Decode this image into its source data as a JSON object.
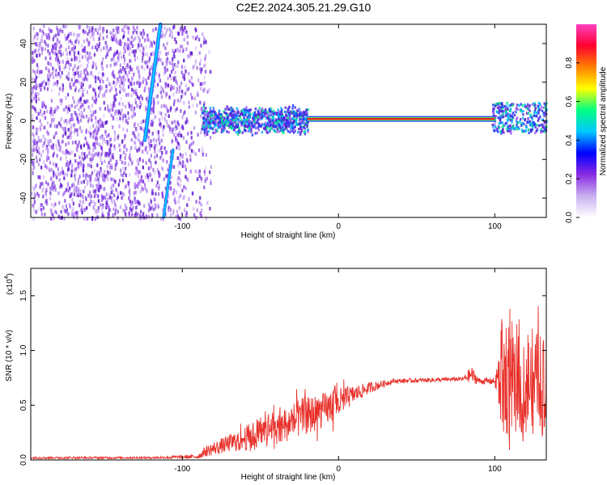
{
  "title": "C2E2.2024.305.21.29.G10",
  "colors": {
    "snr_line": "#e8302a",
    "carrier_core": "#e0152a",
    "satellite_streak": "#2a6bff",
    "noise_dots": "#7d3bd6"
  },
  "chart_data": [
    {
      "type": "heatmap",
      "name": "spectrogram",
      "xlabel": "Height of straight line (km)",
      "ylabel": "Frequency (Hz)",
      "xlim": [
        -197,
        133
      ],
      "ylim": [
        -50,
        50
      ],
      "x_ticks": [
        -100,
        0,
        100
      ],
      "x_tick_labels": [
        "-100",
        "0",
        "100"
      ],
      "y_ticks": [
        -40,
        -20,
        0,
        20,
        40
      ],
      "y_tick_labels": [
        "-40",
        "-20",
        "0",
        "20",
        "40"
      ],
      "colorbar": {
        "label": "Normalized spectral amplitude",
        "range": [
          0,
          1
        ],
        "ticks": [
          0.0,
          0.2,
          0.4,
          0.6,
          0.8
        ],
        "tick_labels": [
          "0.0",
          "0.2",
          "0.4",
          "0.6",
          "0.8"
        ],
        "colormap": [
          "#ffffff",
          "#c8b0f0",
          "#8a2be2",
          "#0000ff",
          "#00c8ff",
          "#00ff80",
          "#ffff00",
          "#ff8000",
          "#ff0030",
          "#ff40c0"
        ]
      },
      "features": {
        "noise_region_x": [
          -197,
          -88
        ],
        "transition_region_x": [
          -88,
          -20
        ],
        "carrier_line_x": [
          -20,
          100
        ],
        "carrier_line_freq": 1,
        "satellite_streak_a": [
          [
            -124,
            -10
          ],
          [
            -114,
            50
          ]
        ],
        "satellite_streak_b": [
          [
            -112,
            -50
          ],
          [
            -106,
            -15
          ]
        ]
      }
    },
    {
      "type": "line",
      "name": "snr",
      "xlabel": "Height of straight line (km)",
      "ylabel": "SNR (10 * v/v)",
      "y_scale_label": "(x10",
      "y_scale_exponent": "4",
      "xlim": [
        -197,
        133
      ],
      "ylim": [
        0,
        1.75
      ],
      "x_ticks": [
        -100,
        0,
        100
      ],
      "x_tick_labels": [
        "-100",
        "0",
        "100"
      ],
      "y_ticks": [
        0.0,
        0.5,
        1.0,
        1.5
      ],
      "y_tick_labels": [
        "0.0",
        "0.5",
        "1.0",
        "1.5"
      ],
      "series": [
        {
          "name": "SNR",
          "envelope_x": [
            -197,
            -120,
            -90,
            -85,
            -70,
            -55,
            -40,
            -25,
            -10,
            0,
            10,
            20,
            35,
            60,
            80,
            85,
            90,
            100,
            105,
            115,
            125,
            133
          ],
          "envelope_mid": [
            0.02,
            0.02,
            0.03,
            0.08,
            0.15,
            0.22,
            0.3,
            0.38,
            0.45,
            0.52,
            0.6,
            0.66,
            0.72,
            0.73,
            0.74,
            0.78,
            0.72,
            0.72,
            0.75,
            0.75,
            0.7,
            0.65
          ],
          "envelope_amp": [
            0.01,
            0.01,
            0.02,
            0.05,
            0.08,
            0.13,
            0.16,
            0.18,
            0.16,
            0.14,
            0.08,
            0.05,
            0.02,
            0.02,
            0.02,
            0.08,
            0.03,
            0.03,
            0.55,
            0.5,
            0.5,
            0.45
          ]
        }
      ]
    }
  ]
}
